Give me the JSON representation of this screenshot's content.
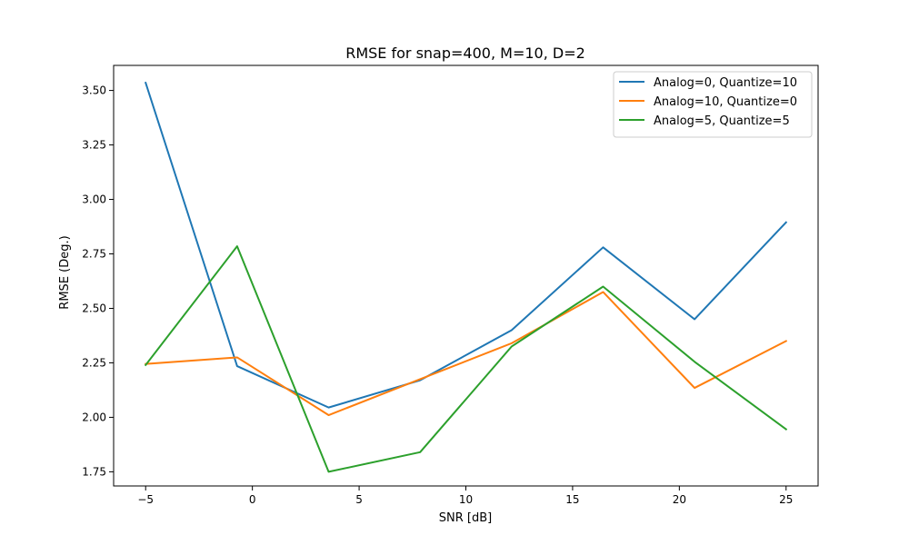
{
  "chart_data": {
    "type": "line",
    "title": "RMSE for snap=400, M=10, D=2",
    "xlabel": "SNR [dB]",
    "ylabel": "RMSE (Deg.)",
    "xlim": [
      -6.5,
      26.5
    ],
    "ylim": [
      1.685,
      3.615
    ],
    "xticks": [
      -5,
      0,
      5,
      10,
      15,
      20,
      25
    ],
    "yticks": [
      1.75,
      2.0,
      2.25,
      2.5,
      2.75,
      3.0,
      3.25,
      3.5
    ],
    "ytick_labels": [
      "1.75",
      "2.00",
      "2.25",
      "2.50",
      "2.75",
      "3.00",
      "3.25",
      "3.50"
    ],
    "grid": false,
    "legend_position": "top-right",
    "x": [
      -5,
      -0.714,
      3.571,
      7.857,
      12.143,
      16.429,
      20.714,
      25
    ],
    "series": [
      {
        "name": "Analog=0, Quantize=10",
        "color": "#1f77b4",
        "values": [
          3.535,
          2.235,
          2.045,
          2.17,
          2.4,
          2.78,
          2.45,
          2.895
        ]
      },
      {
        "name": "Analog=10, Quantize=0",
        "color": "#ff7f0e",
        "values": [
          2.245,
          2.275,
          2.01,
          2.175,
          2.34,
          2.575,
          2.135,
          2.35
        ]
      },
      {
        "name": "Analog=5, Quantize=5",
        "color": "#2ca02c",
        "values": [
          2.24,
          2.785,
          1.75,
          1.84,
          2.325,
          2.6,
          2.255,
          1.945
        ]
      }
    ]
  }
}
